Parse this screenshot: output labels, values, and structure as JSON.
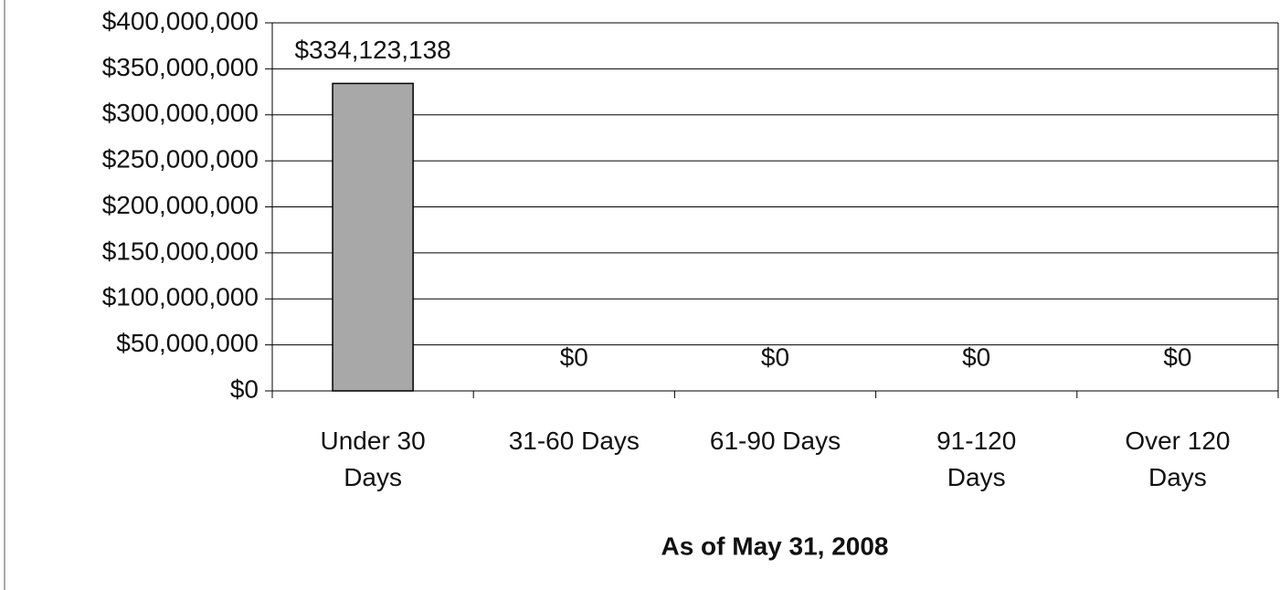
{
  "chart_data": {
    "type": "bar",
    "categories": [
      "Under 30\nDays",
      "31-60 Days",
      "61-90 Days",
      "91-120\nDays",
      "Over 120\nDays"
    ],
    "values": [
      334123138,
      0,
      0,
      0,
      0
    ],
    "value_labels": [
      "$334,123,138",
      "$0",
      "$0",
      "$0",
      "$0"
    ],
    "color": "#a8a8a8",
    "x_label": "As of May 31, 2008",
    "ylim": [
      0,
      400000000
    ],
    "yticks": [
      {
        "value": 0,
        "label": "$0"
      },
      {
        "value": 50000000,
        "label": "$50,000,000"
      },
      {
        "value": 100000000,
        "label": "$100,000,000"
      },
      {
        "value": 150000000,
        "label": "$150,000,000"
      },
      {
        "value": 200000000,
        "label": "$200,000,000"
      },
      {
        "value": 250000000,
        "label": "$250,000,000"
      },
      {
        "value": 300000000,
        "label": "$300,000,000"
      },
      {
        "value": 350000000,
        "label": "$350,000,000"
      },
      {
        "value": 400000000,
        "label": "$400,000,000"
      }
    ],
    "grid": true
  }
}
